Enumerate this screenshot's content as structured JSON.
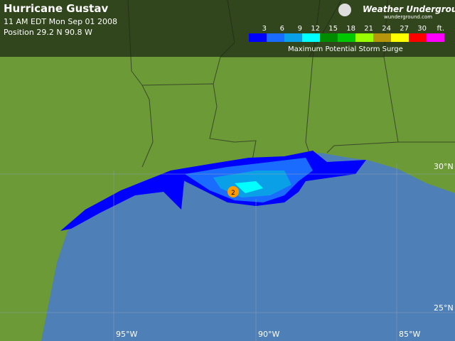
{
  "header": {
    "title": "Hurricane Gustav",
    "time": "11 AM EDT Mon Sep 01 2008",
    "position": "Position 29.2 N 90.8 W"
  },
  "logo": {
    "name": "Weather Underground",
    "url": "wunderground.com"
  },
  "legend": {
    "colors": [
      "#0000ff",
      "#1a6cff",
      "#0aa0e8",
      "#00ffff",
      "#008c00",
      "#00c800",
      "#99ff00",
      "#b8960c",
      "#ffff00",
      "#ff0000",
      "#ff00ff"
    ],
    "labels": [
      "3",
      "6",
      "9",
      "12",
      "15",
      "18",
      "21",
      "24",
      "27",
      "30"
    ],
    "unit": "ft.",
    "caption": "Maximum Potential Storm Surge"
  },
  "grid": {
    "lat": [
      "30°N",
      "25°N"
    ],
    "lon": [
      "95°W",
      "90°W",
      "85°W"
    ]
  },
  "storm": {
    "category": "2"
  }
}
